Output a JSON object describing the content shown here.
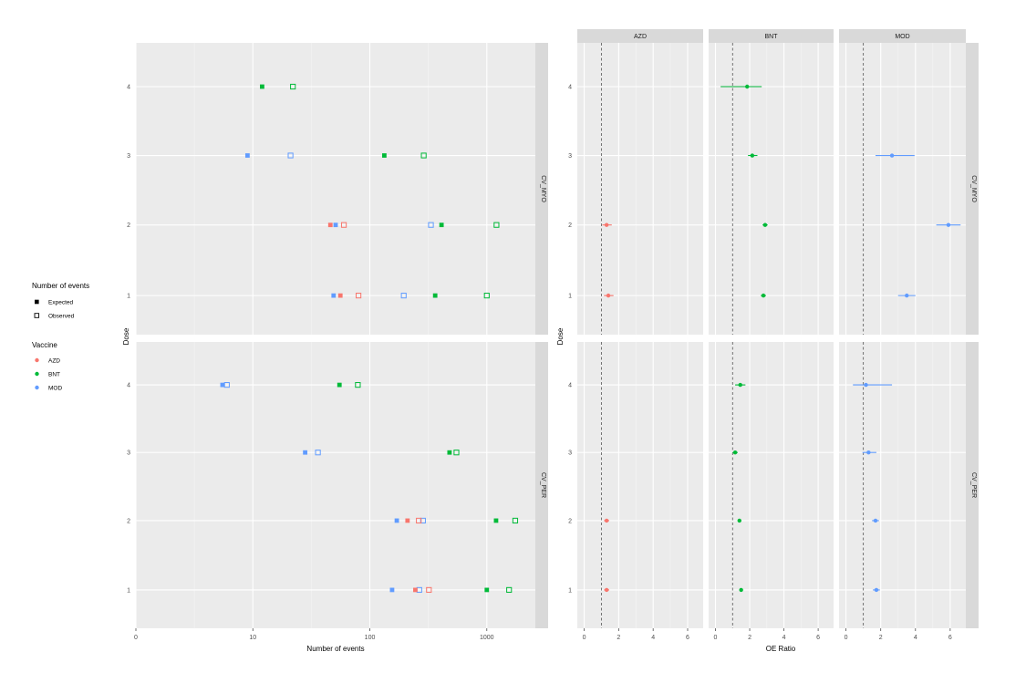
{
  "legend": {
    "events_title": "Number of events",
    "events_items": [
      {
        "label": "Expected",
        "shape": "filled-square"
      },
      {
        "label": "Observed",
        "shape": "open-square"
      }
    ],
    "vaccine_title": "Vaccine",
    "vaccine_items": [
      {
        "label": "AZD",
        "color": "#F8766D"
      },
      {
        "label": "BNT",
        "color": "#00BA38"
      },
      {
        "label": "MOD",
        "color": "#619CFF"
      }
    ]
  },
  "chart_data": [
    {
      "type": "scatter",
      "id": "events",
      "xlabel": "Number of events",
      "ylabel": "Dose",
      "x_scale": "log10",
      "x_ticks": [
        {
          "value": 1,
          "label": "0"
        },
        {
          "value": 10,
          "label": "10"
        },
        {
          "value": 100,
          "label": "100"
        },
        {
          "value": 1000,
          "label": "1000"
        }
      ],
      "xlim": [
        1,
        2600
      ],
      "y_categories": [
        "1",
        "2",
        "3",
        "4"
      ],
      "facet_rows": [
        {
          "label": "CV_MYO",
          "points": [
            {
              "vaccine": "MOD",
              "dose": 4,
              "expected": null,
              "observed": null
            },
            {
              "vaccine": "BNT",
              "dose": 4,
              "expected": 12,
              "observed": 22
            },
            {
              "vaccine": "MOD",
              "dose": 3,
              "expected": 9,
              "observed": 21
            },
            {
              "vaccine": "BNT",
              "dose": 3,
              "expected": 133,
              "observed": 289
            },
            {
              "vaccine": "AZD",
              "dose": 2,
              "expected": 46,
              "observed": 60
            },
            {
              "vaccine": "MOD",
              "dose": 2,
              "expected": 51,
              "observed": 333
            },
            {
              "vaccine": "BNT",
              "dose": 2,
              "expected": 410,
              "observed": 1210
            },
            {
              "vaccine": "AZD",
              "dose": 1,
              "expected": 56,
              "observed": 80
            },
            {
              "vaccine": "MOD",
              "dose": 1,
              "expected": 49,
              "observed": 195
            },
            {
              "vaccine": "BNT",
              "dose": 1,
              "expected": 362,
              "observed": 1000
            }
          ]
        },
        {
          "label": "CV_PER",
          "points": [
            {
              "vaccine": "MOD",
              "dose": 4,
              "expected": 5.5,
              "observed": 6
            },
            {
              "vaccine": "BNT",
              "dose": 4,
              "expected": 55,
              "observed": 79
            },
            {
              "vaccine": "MOD",
              "dose": 3,
              "expected": 28,
              "observed": 36
            },
            {
              "vaccine": "BNT",
              "dose": 3,
              "expected": 480,
              "observed": 550
            },
            {
              "vaccine": "MOD",
              "dose": 2,
              "expected": 170,
              "observed": 285
            },
            {
              "vaccine": "AZD",
              "dose": 2,
              "expected": 210,
              "observed": 262
            },
            {
              "vaccine": "BNT",
              "dose": 2,
              "expected": 1200,
              "observed": 1750
            },
            {
              "vaccine": "MOD",
              "dose": 1,
              "expected": 155,
              "observed": 265
            },
            {
              "vaccine": "AZD",
              "dose": 1,
              "expected": 245,
              "observed": 320
            },
            {
              "vaccine": "BNT",
              "dose": 1,
              "expected": 1000,
              "observed": 1550
            }
          ]
        }
      ]
    },
    {
      "type": "scatter",
      "id": "oe_ratio",
      "xlabel": "OE Ratio",
      "ylabel": "Dose",
      "x_ticks": [
        0,
        2,
        4,
        6
      ],
      "xlim": [
        -0.4,
        6.9
      ],
      "reference_line": 1,
      "y_categories": [
        "1",
        "2",
        "3",
        "4"
      ],
      "facet_columns": [
        "AZD",
        "BNT",
        "MOD"
      ],
      "facet_rows": [
        {
          "label": "CV_MYO",
          "points": [
            {
              "vaccine": "BNT",
              "dose": 4,
              "ratio": 1.85,
              "lower": 0.3,
              "upper": 2.7
            },
            {
              "vaccine": "BNT",
              "dose": 3,
              "ratio": 2.15,
              "lower": 1.9,
              "upper": 2.45
            },
            {
              "vaccine": "MOD",
              "dose": 3,
              "ratio": 2.65,
              "lower": 1.7,
              "upper": 3.95
            },
            {
              "vaccine": "AZD",
              "dose": 2,
              "ratio": 1.3,
              "lower": 1.05,
              "upper": 1.6
            },
            {
              "vaccine": "BNT",
              "dose": 2,
              "ratio": 2.9,
              "lower": 2.75,
              "upper": 3.05
            },
            {
              "vaccine": "MOD",
              "dose": 2,
              "ratio": 5.9,
              "lower": 5.2,
              "upper": 6.6
            },
            {
              "vaccine": "AZD",
              "dose": 1,
              "ratio": 1.4,
              "lower": 1.15,
              "upper": 1.7
            },
            {
              "vaccine": "BNT",
              "dose": 1,
              "ratio": 2.8,
              "lower": 2.65,
              "upper": 2.95
            },
            {
              "vaccine": "MOD",
              "dose": 1,
              "ratio": 3.5,
              "lower": 3.0,
              "upper": 4.0
            }
          ]
        },
        {
          "label": "CV_PER",
          "points": [
            {
              "vaccine": "BNT",
              "dose": 4,
              "ratio": 1.45,
              "lower": 1.15,
              "upper": 1.75
            },
            {
              "vaccine": "MOD",
              "dose": 4,
              "ratio": 1.15,
              "lower": 0.4,
              "upper": 2.65
            },
            {
              "vaccine": "BNT",
              "dose": 3,
              "ratio": 1.15,
              "lower": 1.0,
              "upper": 1.3
            },
            {
              "vaccine": "MOD",
              "dose": 3,
              "ratio": 1.3,
              "lower": 0.95,
              "upper": 1.75
            },
            {
              "vaccine": "AZD",
              "dose": 2,
              "ratio": 1.3,
              "lower": 1.15,
              "upper": 1.45
            },
            {
              "vaccine": "BNT",
              "dose": 2,
              "ratio": 1.4,
              "lower": 1.32,
              "upper": 1.48
            },
            {
              "vaccine": "MOD",
              "dose": 2,
              "ratio": 1.7,
              "lower": 1.5,
              "upper": 1.9
            },
            {
              "vaccine": "AZD",
              "dose": 1,
              "ratio": 1.3,
              "lower": 1.15,
              "upper": 1.45
            },
            {
              "vaccine": "BNT",
              "dose": 1,
              "ratio": 1.5,
              "lower": 1.42,
              "upper": 1.58
            },
            {
              "vaccine": "MOD",
              "dose": 1,
              "ratio": 1.75,
              "lower": 1.55,
              "upper": 1.95
            }
          ]
        }
      ]
    }
  ]
}
